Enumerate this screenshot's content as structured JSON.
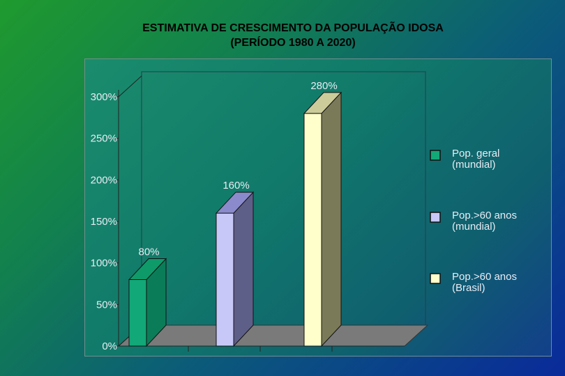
{
  "header": {
    "title_line1": "ESTIMATIVA DE CRESCIMENTO DA POPULAÇÃO IDOSA",
    "title_line2": "(PERÍODO 1980 A 2020)"
  },
  "chart_data": {
    "type": "bar",
    "title": "ESTIMATIVA DE CRESCIMENTO DA POPULAÇÃO IDOSA (PERÍODO 1980 A 2020)",
    "categories": [
      "Pop. geral (mundial)",
      "Pop.>60 anos (mundial)",
      "Pop.>60 anos (Brasil)"
    ],
    "values": [
      80,
      160,
      280
    ],
    "data_labels": [
      "80%",
      "160%",
      "280%"
    ],
    "colors": [
      "#12a877",
      "#c8c8f8",
      "#ffffcc"
    ],
    "side_colors": [
      "#0a7d58",
      "#5e5f88",
      "#7a7a58"
    ],
    "top_colors": [
      "#0f9a6a",
      "#8a8acc",
      "#cccc9a"
    ],
    "ylim": [
      0,
      300
    ],
    "y_ticks": [
      0,
      50,
      100,
      150,
      200,
      250,
      300
    ],
    "y_tick_labels": [
      "0%",
      "50%",
      "100%",
      "150%",
      "200%",
      "250%",
      "300%"
    ],
    "legend": {
      "placement": "right",
      "items": [
        {
          "line1": "Pop. geral",
          "line2": "(mundial)"
        },
        {
          "line1": "Pop.>60 anos",
          "line2": "(mundial)"
        },
        {
          "line1": "Pop.>60 anos",
          "line2": "(Brasil)"
        }
      ]
    },
    "grid": false,
    "three_d": true
  }
}
